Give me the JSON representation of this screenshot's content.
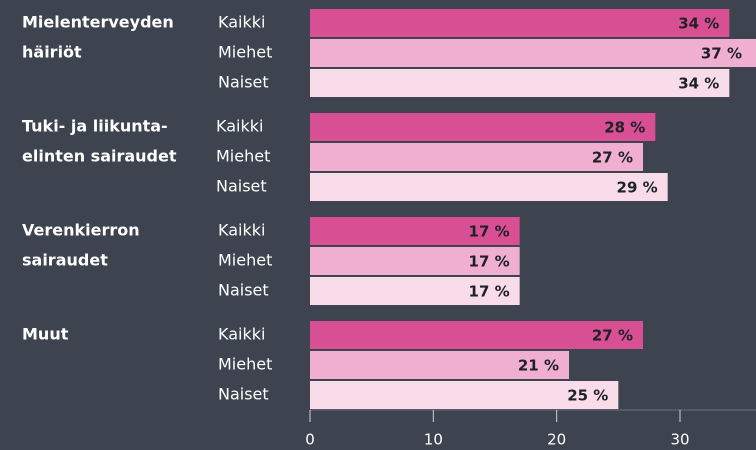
{
  "chart_data": {
    "type": "grouped-hbar",
    "categories": [
      [
        "Mielenterveyden",
        "häiriöt"
      ],
      [
        "Tuki- ja liikunta-",
        "elinten sairaudet"
      ],
      [
        "Verenkierron",
        "sairaudet"
      ],
      [
        "Muut"
      ]
    ],
    "series": [
      {
        "name": "Kaikki",
        "color": "#d94f93",
        "values": [
          34,
          28,
          17,
          27
        ],
        "value_labels": [
          "34 %",
          "28 %",
          "17 %",
          "27 %"
        ]
      },
      {
        "name": "Miehet",
        "color": "#f0aed0",
        "values": [
          37,
          27,
          17,
          21
        ],
        "value_labels": [
          "37 %",
          "27 %",
          "17 %",
          "21 %"
        ]
      },
      {
        "name": "Naiset",
        "color": "#f8dcea",
        "values": [
          34,
          29,
          17,
          25
        ],
        "value_labels": [
          "34 %",
          "29 %",
          "17 %",
          "25 %"
        ]
      }
    ],
    "xlim": [
      0,
      36
    ],
    "xticks": [
      0,
      10,
      20,
      30
    ]
  }
}
